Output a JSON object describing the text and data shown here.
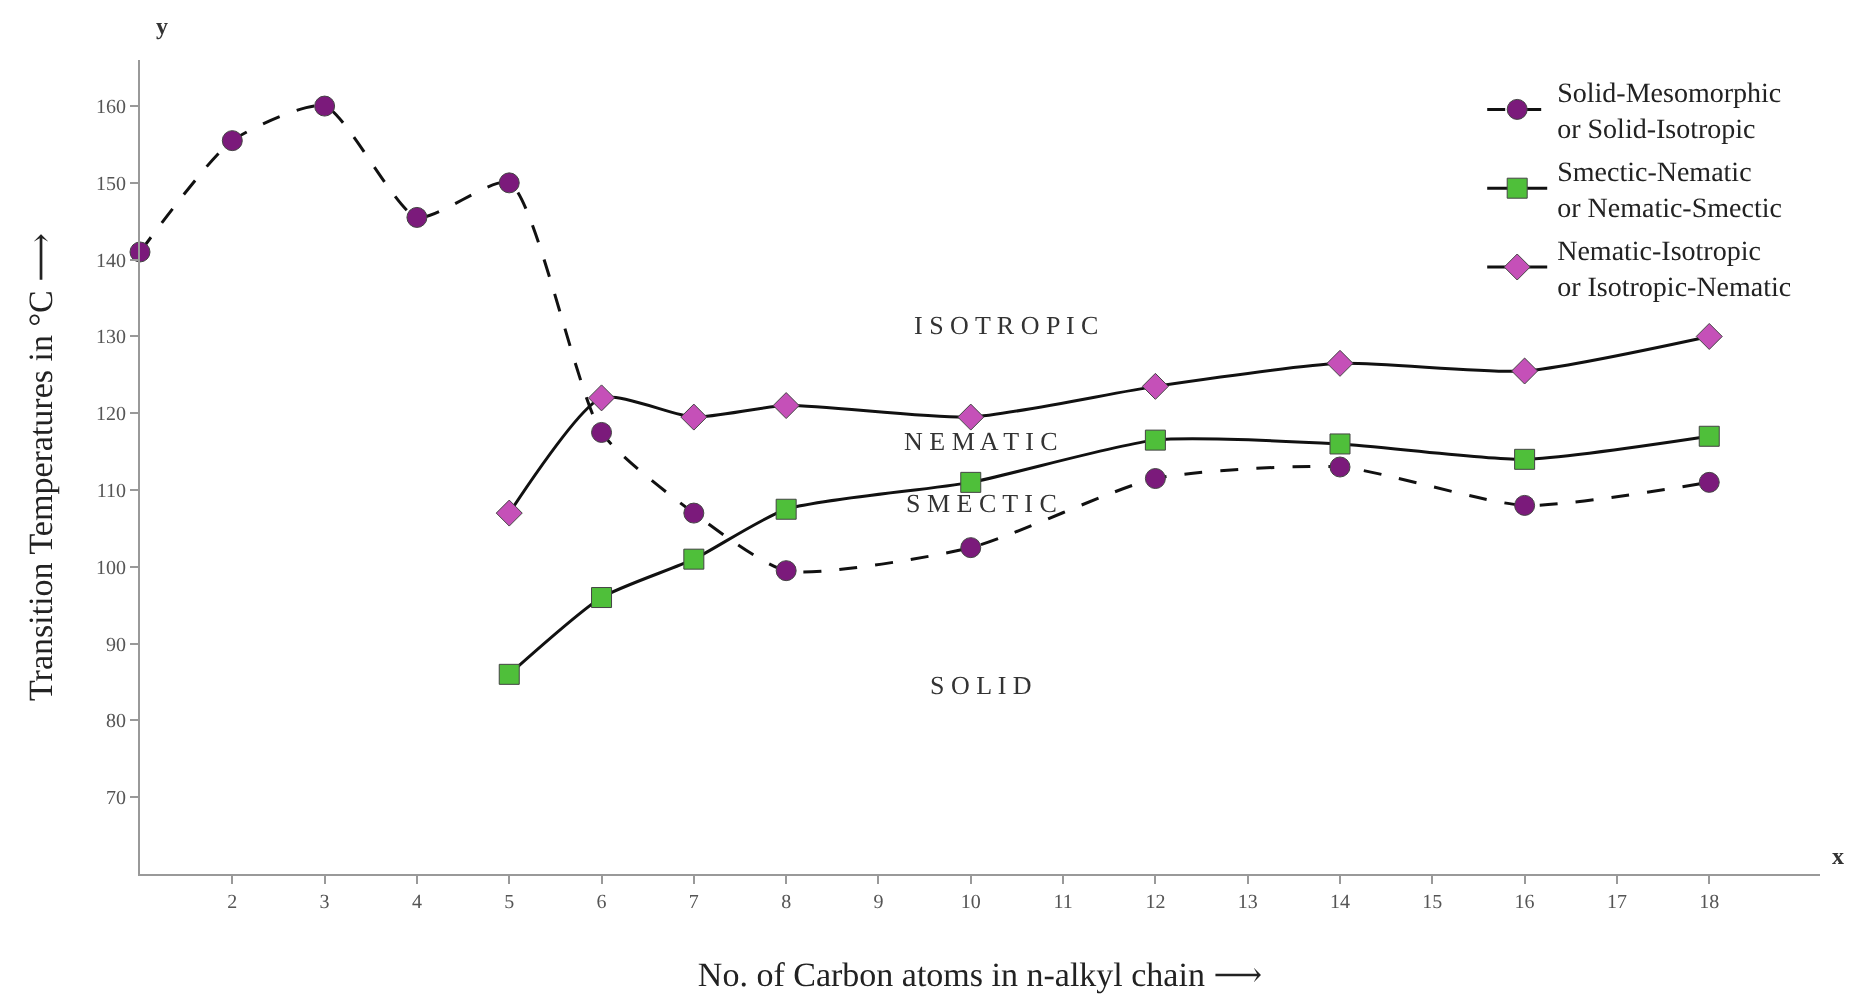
{
  "chart_data": {
    "type": "line",
    "xlabel": "No. of Carbon atoms in n-alkyl chain ⟶",
    "ylabel": "Transition Temperatures in °C ⟶",
    "xlim": [
      1,
      19.2
    ],
    "ylim": [
      60,
      166
    ],
    "xticks": [
      2,
      3,
      4,
      5,
      6,
      7,
      8,
      9,
      10,
      11,
      12,
      13,
      14,
      15,
      16,
      17,
      18
    ],
    "yticks": [
      70,
      80,
      90,
      100,
      110,
      120,
      130,
      140,
      150,
      160
    ],
    "grid": false,
    "legend": "top right",
    "series": [
      {
        "name": "Solid-Mesomorphic or Solid-Isotropic",
        "color": "#7b1a7b",
        "marker": "circle",
        "line_style": "dashed",
        "x": [
          1,
          2,
          3,
          4,
          5,
          6,
          7,
          8,
          10,
          12,
          14,
          16,
          18
        ],
        "values": [
          141,
          155.5,
          160,
          145.5,
          150,
          117.5,
          107,
          99.5,
          102.5,
          111.5,
          113,
          108,
          111
        ]
      },
      {
        "name": "Smectic-Nematic or Nematic-Smectic",
        "color": "#4fbf3a",
        "marker": "square",
        "line_style": "solid",
        "x": [
          5,
          6,
          7,
          8,
          10,
          12,
          14,
          16,
          18
        ],
        "values": [
          86,
          96,
          101,
          107.5,
          111,
          116.5,
          116,
          114,
          117
        ]
      },
      {
        "name": "Nematic-Isotropic or Isotropic-Nematic",
        "color": "#c550b8",
        "marker": "diamond",
        "line_style": "solid",
        "x": [
          5,
          6,
          7,
          8,
          10,
          12,
          14,
          16,
          18
        ],
        "values": [
          107,
          122,
          119.5,
          121,
          119.5,
          123.5,
          126.5,
          125.5,
          130
        ]
      }
    ],
    "annotations": [
      "I S O T R O P I C",
      "N E M A T I C",
      "S M E C T I C",
      "S O L I D",
      "y",
      "x"
    ]
  }
}
